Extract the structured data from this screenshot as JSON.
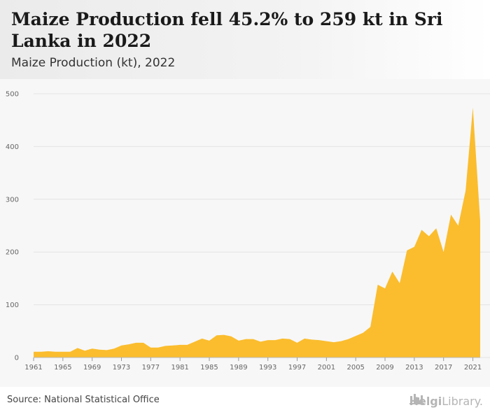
{
  "header": {
    "title": "Maize Production fell 45.2% to 259 kt in Sri Lanka in 2022",
    "subtitle": "Maize Production (kt), 2022"
  },
  "footer": {
    "source": "Source: National Statistical Office",
    "brand_bold": "Helgi",
    "brand_rest": "Library."
  },
  "colors": {
    "area": "#fbbd2e",
    "grid": "#e4e4e4"
  },
  "chart_data": {
    "type": "area",
    "title": "Maize Production fell 45.2% to 259 kt in Sri Lanka in 2022",
    "subtitle": "Maize Production (kt), 2022",
    "xlabel": "",
    "ylabel": "",
    "ylim": [
      0,
      500
    ],
    "xlim": [
      1961,
      2022
    ],
    "y_ticks": [
      0,
      100,
      200,
      300,
      400,
      500
    ],
    "x_ticks": [
      1961,
      1965,
      1969,
      1973,
      1977,
      1981,
      1985,
      1989,
      1993,
      1997,
      2001,
      2005,
      2009,
      2013,
      2017,
      2021
    ],
    "grid": true,
    "legend": "none",
    "x": [
      1961,
      1962,
      1963,
      1964,
      1965,
      1966,
      1967,
      1968,
      1969,
      1970,
      1971,
      1972,
      1973,
      1974,
      1975,
      1976,
      1977,
      1978,
      1979,
      1980,
      1981,
      1982,
      1983,
      1984,
      1985,
      1986,
      1987,
      1988,
      1989,
      1990,
      1991,
      1992,
      1993,
      1994,
      1995,
      1996,
      1997,
      1998,
      1999,
      2000,
      2001,
      2002,
      2003,
      2004,
      2005,
      2006,
      2007,
      2008,
      2009,
      2010,
      2011,
      2012,
      2013,
      2014,
      2015,
      2016,
      2017,
      2018,
      2019,
      2020,
      2021,
      2022
    ],
    "series": [
      {
        "values": [
          11,
          11,
          12,
          11,
          11,
          11,
          18,
          13,
          17,
          15,
          14,
          17,
          23,
          25,
          28,
          28,
          19,
          19,
          22,
          23,
          24,
          24,
          30,
          36,
          32,
          42,
          43,
          40,
          32,
          35,
          35,
          30,
          33,
          33,
          36,
          35,
          28,
          36,
          34,
          33,
          31,
          29,
          31,
          35,
          41,
          47,
          58,
          138,
          131,
          163,
          141,
          203,
          210,
          242,
          230,
          245,
          200,
          271,
          250,
          316,
          474,
          259
        ]
      }
    ]
  }
}
